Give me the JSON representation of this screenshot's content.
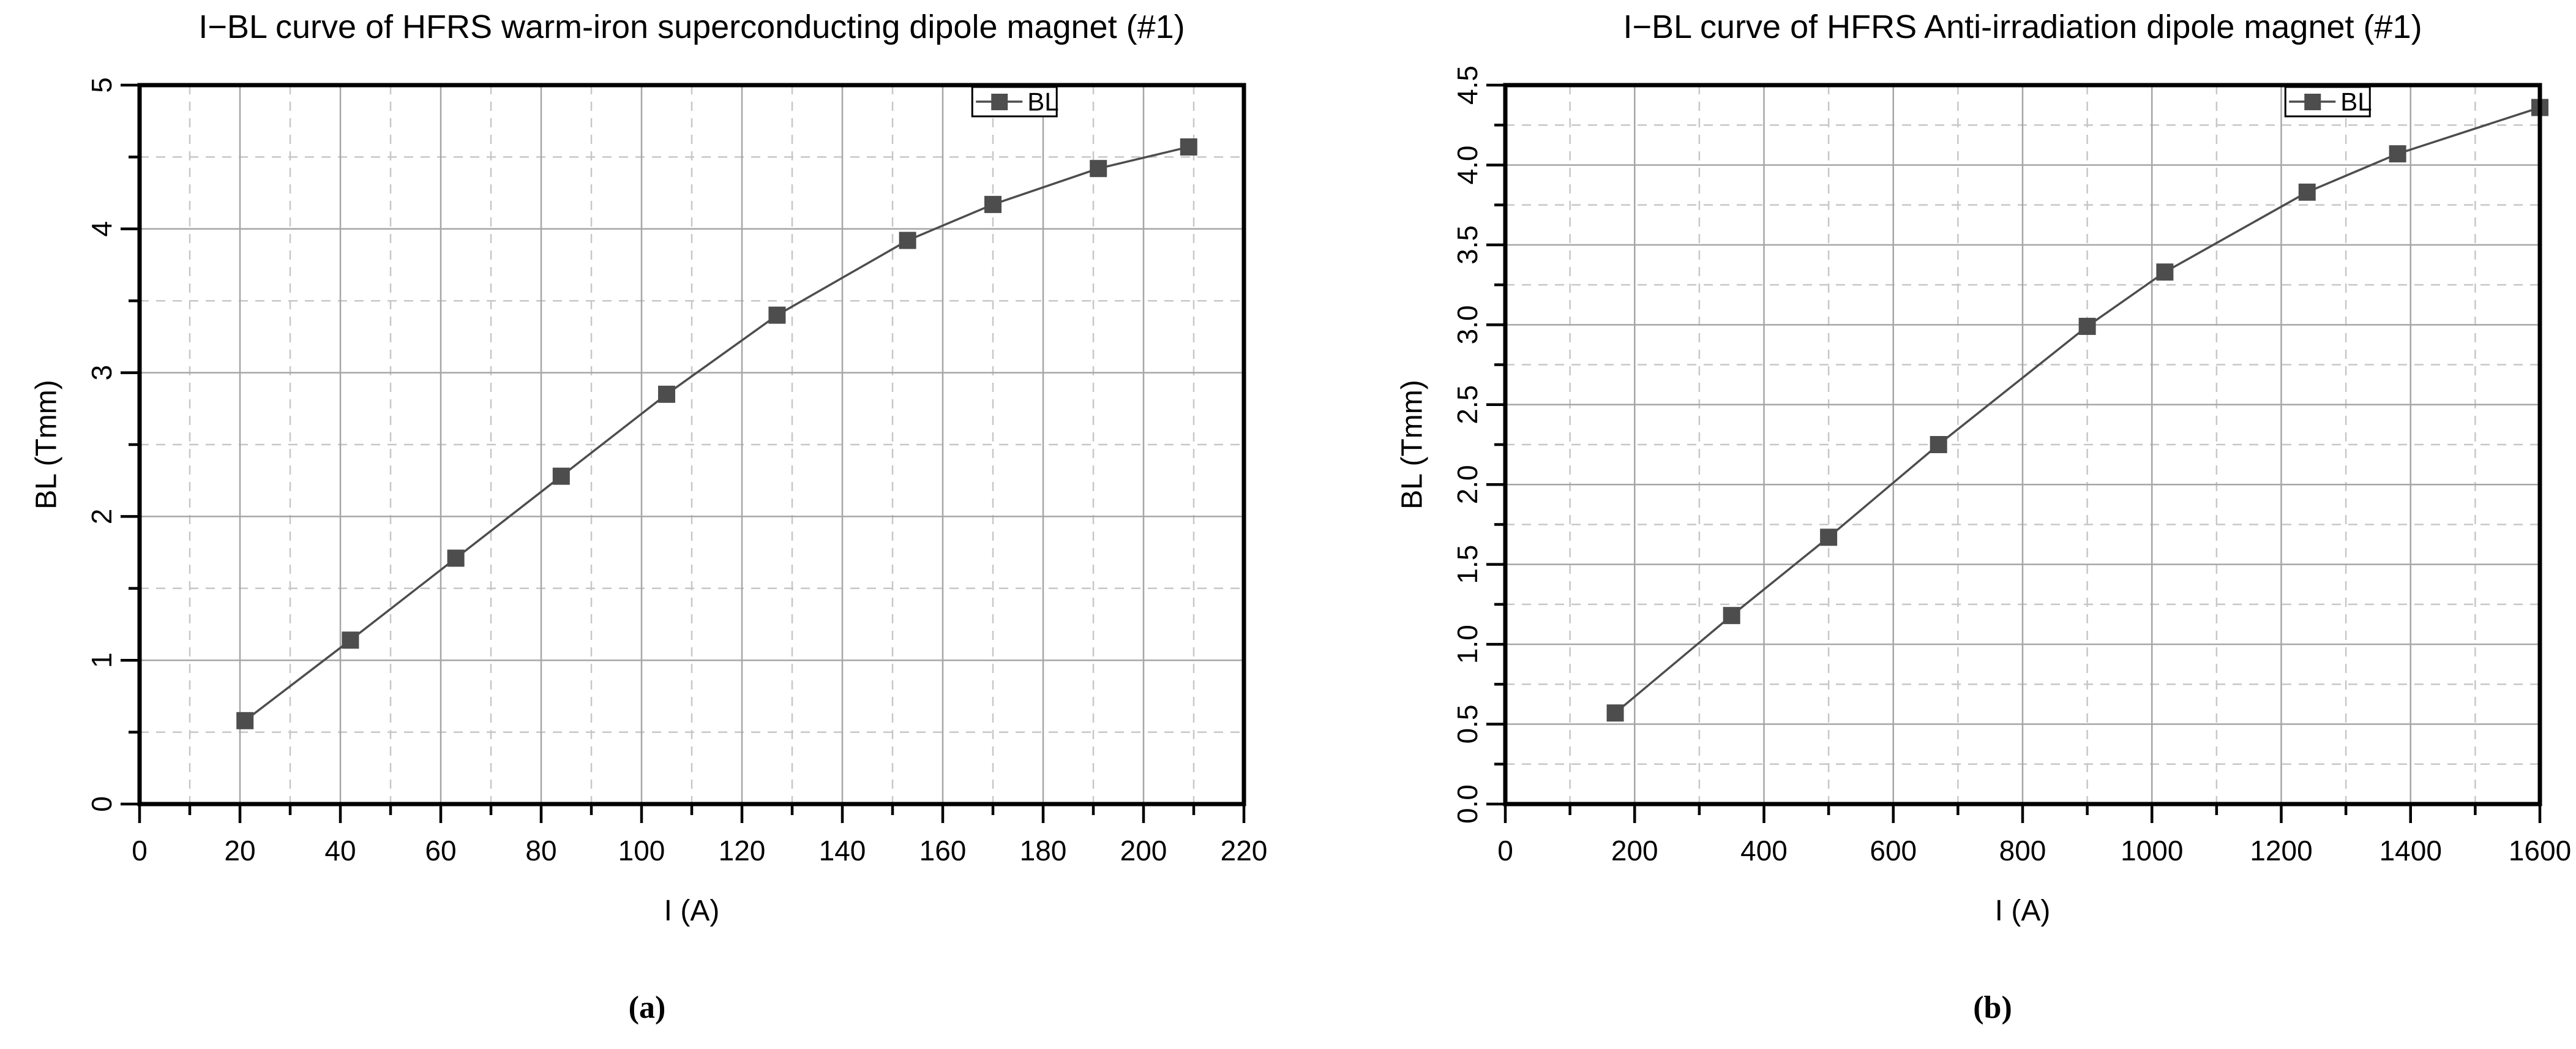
{
  "figure": {
    "captions": [
      {
        "label": "(a)"
      },
      {
        "label": "(b)"
      }
    ]
  },
  "chart_data": [
    {
      "id": "warm-iron-dipole",
      "type": "line",
      "title": "I−BL curve of HFRS warm-iron superconducting dipole magnet (#1)",
      "xlabel": "I (A)",
      "ylabel": "BL (Tmm)",
      "legend": [
        "BL"
      ],
      "legend_position": "top-right-inside",
      "marker": "filled-square",
      "grid": "major-solid-minor-dashed",
      "xlim": [
        0,
        220
      ],
      "ylim": [
        0,
        5
      ],
      "x_major_step": 20,
      "x_minor_step": 10,
      "y_major_step": 1,
      "y_minor_step": 0.5,
      "x_tick_decimals": 0,
      "y_tick_decimals": 0,
      "x": [
        21,
        42,
        63,
        84,
        105,
        127,
        153,
        170,
        191,
        209
      ],
      "y": [
        0.58,
        1.14,
        1.71,
        2.28,
        2.85,
        3.4,
        3.92,
        4.17,
        4.42,
        4.57
      ],
      "colors": {
        "series": "#4d4d4d",
        "major_grid": "#a6a6a6",
        "minor_grid": "#c7c7c7",
        "axis": "#000000",
        "legend_bg": "#ffffff"
      }
    },
    {
      "id": "anti-irradiation-dipole",
      "type": "line",
      "title": "I−BL curve of HFRS Anti-irradiation dipole magnet (#1)",
      "xlabel": "I (A)",
      "ylabel": "BL (Tmm)",
      "legend": [
        "BL"
      ],
      "legend_position": "top-right-inside",
      "marker": "filled-square",
      "grid": "major-solid-minor-dashed",
      "xlim": [
        0,
        1600
      ],
      "ylim": [
        0,
        4.5
      ],
      "x_major_step": 200,
      "x_minor_step": 100,
      "y_major_step": 0.5,
      "y_minor_step": 0.25,
      "x_tick_decimals": 0,
      "y_tick_decimals": 1,
      "x": [
        170,
        350,
        500,
        670,
        900,
        1020,
        1240,
        1380,
        1600
      ],
      "y": [
        0.57,
        1.18,
        1.67,
        2.25,
        2.99,
        3.33,
        3.83,
        4.07,
        4.36
      ],
      "colors": {
        "series": "#4d4d4d",
        "major_grid": "#a6a6a6",
        "minor_grid": "#c7c7c7",
        "axis": "#000000",
        "legend_bg": "#ffffff"
      }
    }
  ]
}
